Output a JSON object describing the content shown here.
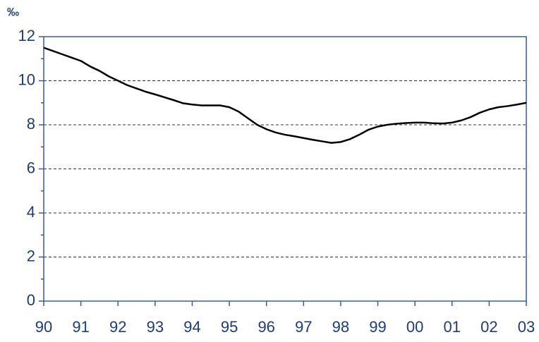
{
  "chart_data": {
    "type": "line",
    "y_unit_label": "‰",
    "categories": [
      "90",
      null,
      null,
      null,
      "91",
      null,
      null,
      null,
      "92",
      null,
      null,
      null,
      "93",
      null,
      null,
      null,
      "94",
      null,
      null,
      null,
      "95",
      null,
      null,
      null,
      "96",
      null,
      null,
      null,
      "97",
      null,
      null,
      null,
      "98",
      null,
      null,
      null,
      "99",
      null,
      null,
      null,
      "00",
      null,
      null,
      null,
      "01",
      null,
      null,
      null,
      "02",
      null,
      null,
      null,
      "03"
    ],
    "values": [
      11.5,
      11.35,
      11.2,
      11.05,
      10.9,
      10.65,
      10.45,
      10.2,
      10.0,
      9.8,
      9.65,
      9.5,
      9.38,
      9.25,
      9.12,
      8.98,
      8.92,
      8.88,
      8.88,
      8.88,
      8.8,
      8.6,
      8.3,
      8.0,
      7.8,
      7.65,
      7.55,
      7.48,
      7.4,
      7.32,
      7.25,
      7.18,
      7.22,
      7.35,
      7.55,
      7.78,
      7.92,
      8.0,
      8.05,
      8.08,
      8.1,
      8.1,
      8.07,
      8.06,
      8.1,
      8.2,
      8.35,
      8.55,
      8.7,
      8.8,
      8.85,
      8.92,
      9.0
    ],
    "color": "#000000",
    "ylim": [
      0,
      12
    ],
    "yticks": [
      0,
      2,
      4,
      6,
      8,
      10,
      12
    ],
    "yminorticks": [
      1,
      3,
      5,
      7,
      9,
      11
    ],
    "grid": true
  }
}
